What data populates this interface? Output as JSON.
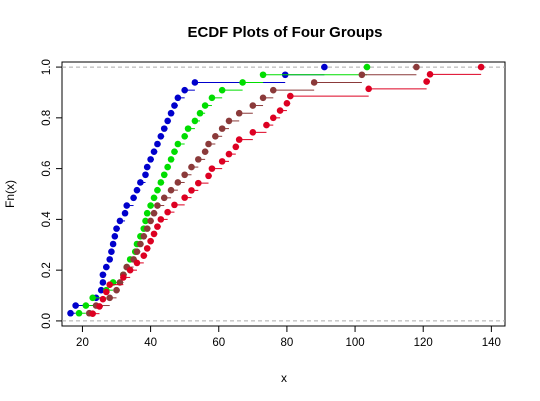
{
  "chart_data": {
    "type": "ecdf",
    "title": "ECDF Plots of Four Groups",
    "xlabel": "x",
    "ylabel": "Fn(x)",
    "xlim": [
      14,
      144
    ],
    "ylim": [
      -0.02,
      1.02
    ],
    "x_ticks": [
      20,
      40,
      60,
      80,
      100,
      120,
      140
    ],
    "y_ticks": [
      0.0,
      0.2,
      0.4,
      0.6,
      0.8,
      1.0
    ],
    "x_tick_labels": [
      "20",
      "40",
      "60",
      "80",
      "100",
      "120",
      "140"
    ],
    "y_tick_labels": [
      "0.0",
      "0.2",
      "0.4",
      "0.6",
      "0.8",
      "1.0"
    ],
    "reference_lines": [
      0,
      1
    ],
    "grid": false,
    "series": [
      {
        "color": "#0000cc",
        "x": [
          16.5,
          18,
          24,
          25.5,
          26,
          26,
          27,
          28,
          28.5,
          29,
          29.5,
          30,
          31,
          32.5,
          33,
          35,
          36,
          37,
          38.5,
          39,
          40,
          41,
          42,
          43,
          44,
          45,
          46,
          47,
          48,
          50,
          53,
          79.5,
          91
        ]
      },
      {
        "color": "#00dd00",
        "x": [
          19,
          21,
          23,
          27,
          29,
          32,
          33,
          34,
          35.5,
          36,
          37,
          38,
          38.5,
          39,
          40,
          41,
          42,
          43,
          44,
          45,
          46,
          47,
          48,
          50,
          51,
          53,
          54.5,
          56,
          58,
          61,
          67,
          73,
          103.5
        ]
      },
      {
        "color": "#8b3a3a",
        "x": [
          22,
          24,
          28,
          30,
          31,
          32,
          33,
          35,
          36,
          37,
          38,
          39,
          40,
          41,
          42,
          44,
          46,
          48,
          50,
          52,
          54,
          56,
          57,
          59,
          61,
          63,
          66,
          70,
          73,
          76,
          88,
          102,
          118
        ]
      },
      {
        "color": "#dd0022",
        "x": [
          23,
          25,
          26,
          27,
          28,
          32,
          34,
          36,
          38,
          39,
          40,
          41,
          42,
          43,
          45,
          47,
          50,
          52,
          54,
          57,
          58,
          61,
          63,
          65,
          66,
          70,
          74,
          76,
          78,
          80,
          81,
          104,
          121,
          122,
          137
        ]
      }
    ]
  }
}
